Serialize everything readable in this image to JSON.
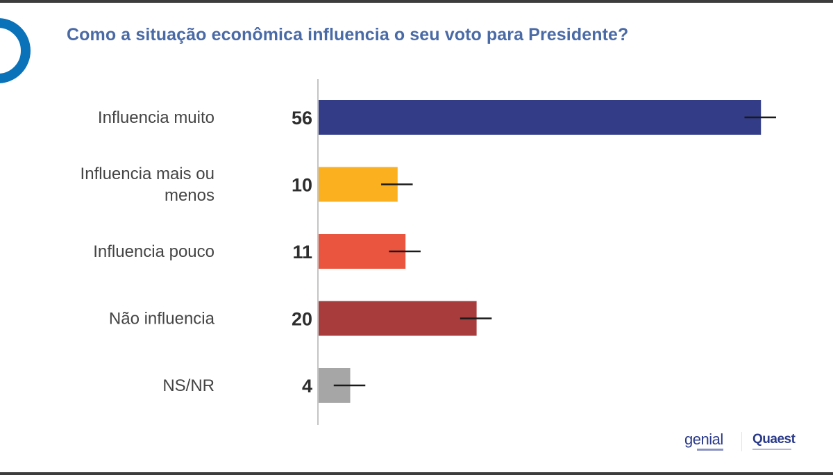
{
  "chart_data": {
    "type": "bar",
    "orientation": "horizontal",
    "title": "Como a situação econômica influencia o seu voto para Presidente?",
    "xlabel": "",
    "ylabel": "",
    "categories": [
      [
        "Influencia muito"
      ],
      [
        "Influencia mais ou",
        "menos"
      ],
      [
        "Influencia pouco"
      ],
      [
        "Não influencia"
      ],
      [
        "NS/NR"
      ]
    ],
    "values": [
      56,
      10,
      11,
      20,
      4
    ],
    "value_labels": [
      "56",
      "10",
      "11",
      "20",
      "4"
    ],
    "colors": [
      "#333d87",
      "#fbb01f",
      "#ea5540",
      "#a83c3d",
      "#a6a6a6"
    ],
    "error_margin": 2,
    "xlim": [
      0,
      58
    ],
    "grid": false,
    "legend": "none"
  },
  "brand": {
    "logo_left": "genial",
    "logo_right": "Quaest"
  }
}
